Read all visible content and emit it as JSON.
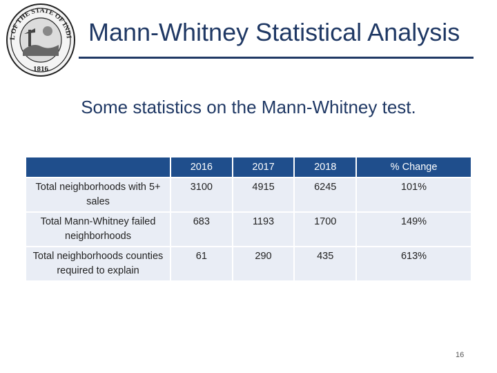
{
  "seal": {
    "top_text": "SEAL OF THE STATE OF INDIANA",
    "year": "1816"
  },
  "title": "Mann-Whitney Statistical Analysis",
  "subtitle": "Some statistics on the Mann-Whitney test.",
  "table": {
    "headers": [
      "",
      "2016",
      "2017",
      "2018",
      "% Change"
    ],
    "rows": [
      {
        "label": "Total neighborhoods with 5+ sales",
        "values": [
          "3100",
          "4915",
          "6245",
          "101%"
        ]
      },
      {
        "label": "Total Mann-Whitney failed neighborhoods",
        "values": [
          "683",
          "1193",
          "1700",
          "149%"
        ]
      },
      {
        "label": "Total neighborhoods counties required to explain",
        "values": [
          "61",
          "290",
          "435",
          "613%"
        ]
      }
    ]
  },
  "page_number": "16",
  "colors": {
    "title": "#1f3864",
    "header_fill": "#1f4e8c",
    "cell_fill": "#e9edf5"
  }
}
